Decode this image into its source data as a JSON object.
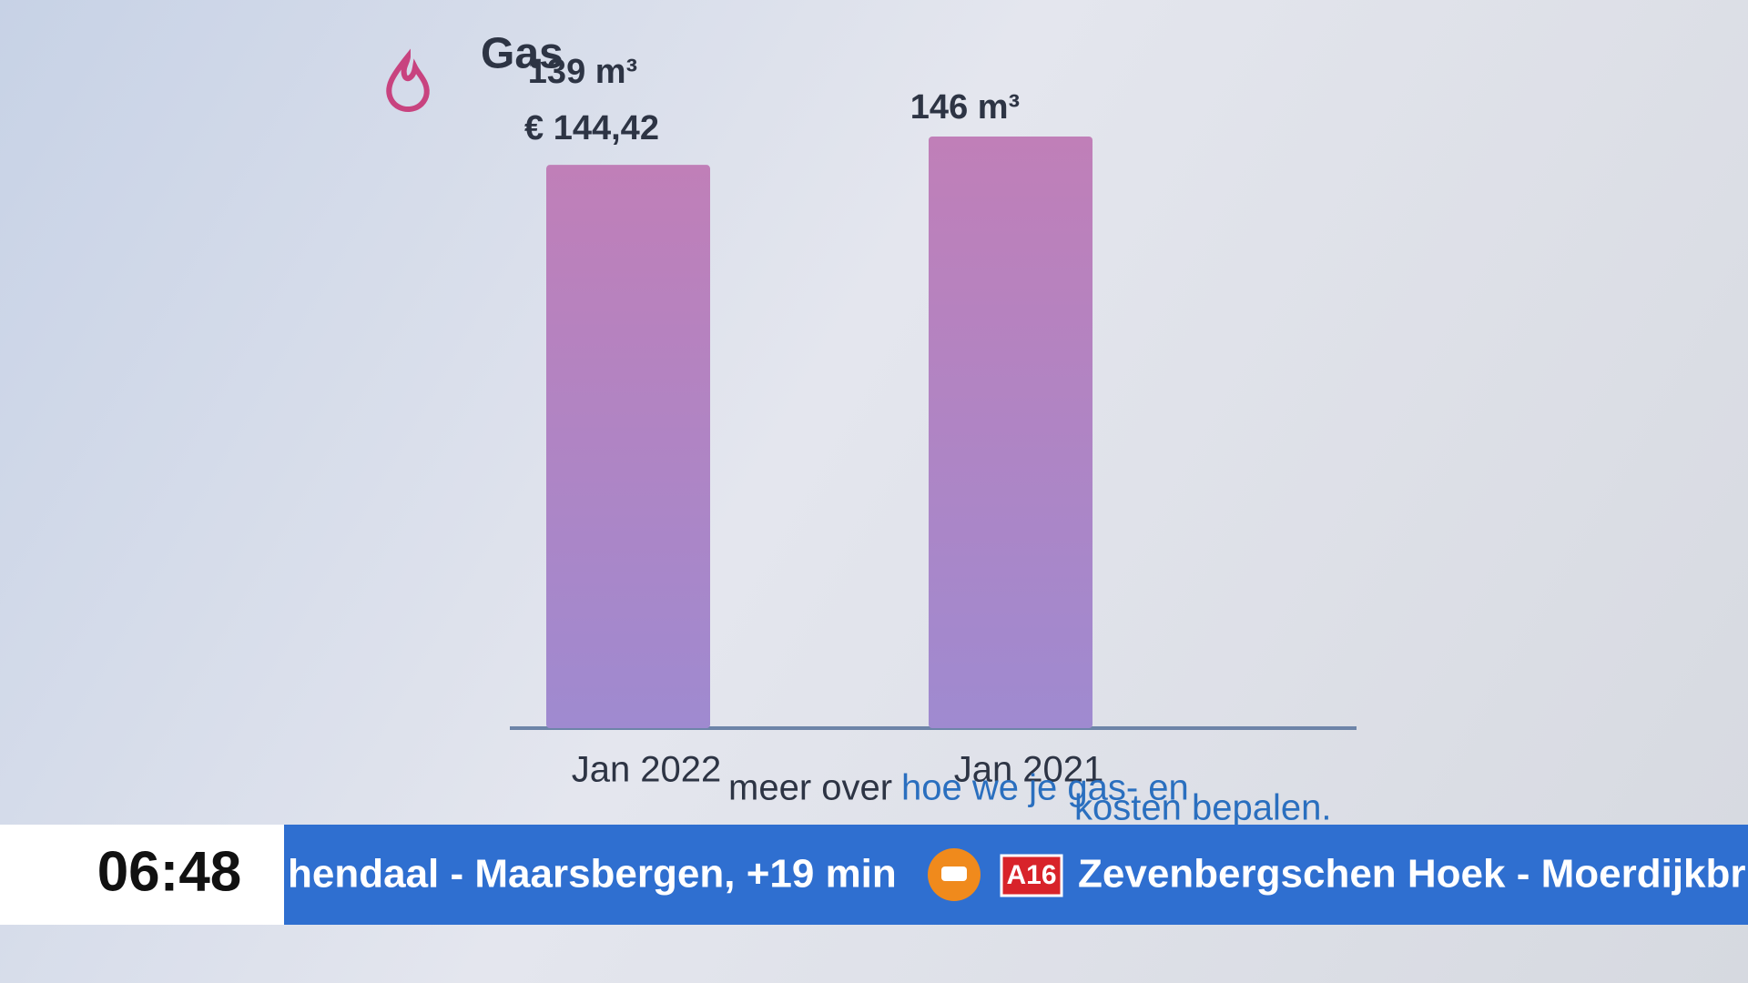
{
  "chart_data": {
    "type": "bar",
    "title": "Gas",
    "categories": [
      "Jan 2022",
      "Jan 2021"
    ],
    "values": [
      139,
      146
    ],
    "value_labels": [
      "139 m³",
      "146 m³"
    ],
    "annotation": "€ 144,42",
    "color": "#b27fc8"
  },
  "footer_text": [
    "meer over",
    "hoe we je gas- en",
    "kosten bepalen."
  ],
  "ticker": {
    "time": "06:48",
    "items": [
      "hendaal - Maarsbergen, +19 min",
      "A16",
      "Zevenbergschen Hoek - Moerdijkbr"
    ]
  }
}
